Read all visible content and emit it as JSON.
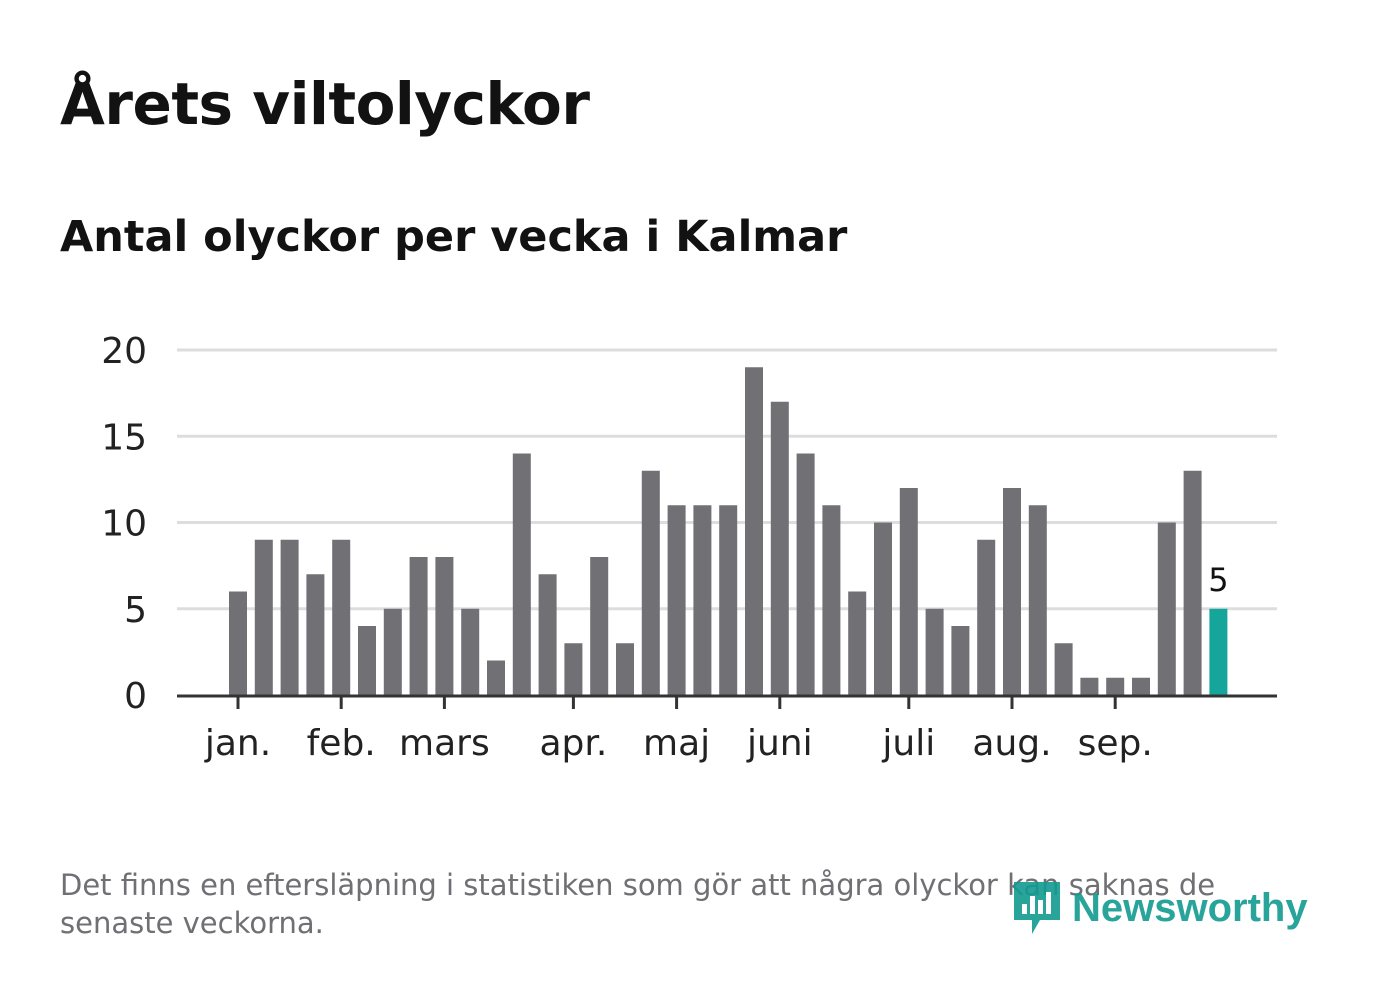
{
  "header": {
    "title": "Årets viltolyckor",
    "subtitle": "Antal olyckor per vecka i Kalmar"
  },
  "chart_data": {
    "type": "bar",
    "title": "Årets viltolyckor",
    "subtitle": "Antal olyckor per vecka i Kalmar",
    "xlabel": "",
    "ylabel": "",
    "ylim": [
      0,
      20
    ],
    "yticks": [
      0,
      5,
      10,
      15,
      20
    ],
    "grid": true,
    "values": [
      6,
      9,
      9,
      7,
      9,
      4,
      5,
      8,
      8,
      5,
      2,
      14,
      7,
      3,
      8,
      3,
      13,
      11,
      11,
      11,
      19,
      17,
      14,
      11,
      6,
      10,
      12,
      5,
      4,
      9,
      12,
      11,
      3,
      1,
      1,
      1,
      10,
      13,
      5
    ],
    "month_labels": [
      {
        "label": "jan.",
        "week": 1
      },
      {
        "label": "feb.",
        "week": 5
      },
      {
        "label": "mars",
        "week": 9
      },
      {
        "label": "apr.",
        "week": 14
      },
      {
        "label": "maj",
        "week": 18
      },
      {
        "label": "juni",
        "week": 22
      },
      {
        "label": "juli",
        "week": 27
      },
      {
        "label": "aug.",
        "week": 31
      },
      {
        "label": "sep.",
        "week": 35
      }
    ],
    "highlight_last": true,
    "last_value_label": "5",
    "bar_color": "#717075",
    "highlight_color": "#16a59a",
    "grid_color": "#dddddd",
    "axis_color": "#333333",
    "tick_text_color": "#222222"
  },
  "footer": {
    "note": "Det finns en eftersläpning i statistiken som gör att några olyckor kan saknas de senaste veckorna.",
    "logo_text": "Newsworthy",
    "logo_icon": "newsworthy-logo-icon",
    "brand_color": "#129b91"
  }
}
